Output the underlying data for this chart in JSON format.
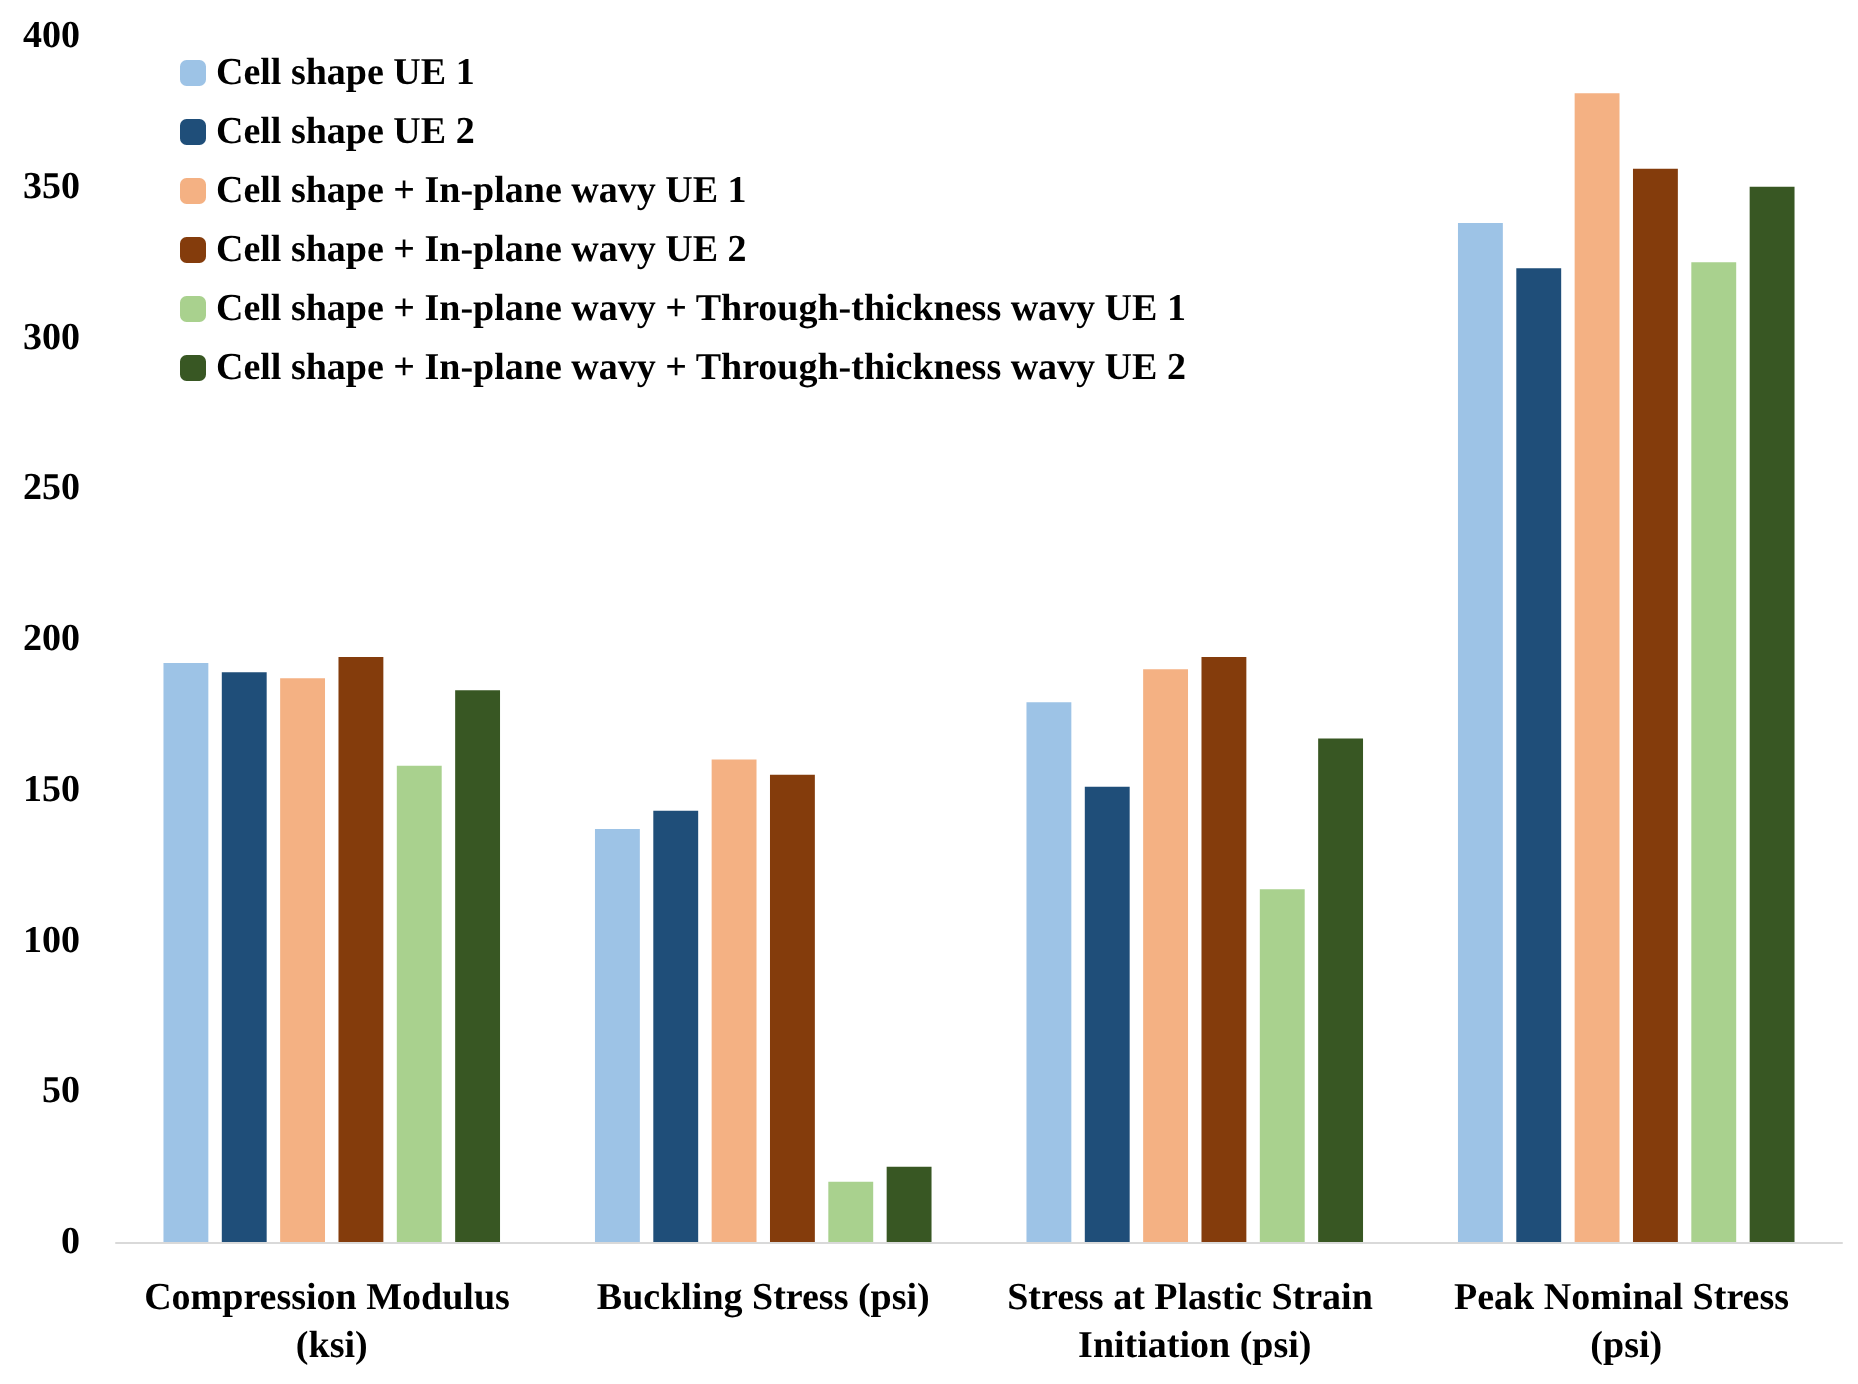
{
  "chart_data": {
    "type": "bar",
    "categories": [
      "Compression Modulus (ksi)",
      "Buckling Stress (psi)",
      "Stress at Plastic Strain Initiation (psi)",
      "Peak Nominal Stress (psi)"
    ],
    "series": [
      {
        "name": "Cell shape UE 1",
        "color": "#9dc3e6",
        "values": [
          192,
          137,
          179,
          338
        ]
      },
      {
        "name": "Cell shape UE 2",
        "color": "#1f4e79",
        "values": [
          189,
          143,
          151,
          323
        ]
      },
      {
        "name": "Cell shape + In-plane wavy UE 1",
        "color": "#f4b183",
        "values": [
          187,
          160,
          190,
          381
        ]
      },
      {
        "name": "Cell shape + In-plane wavy UE 2",
        "color": "#843c0c",
        "values": [
          194,
          155,
          194,
          356
        ]
      },
      {
        "name": "Cell shape + In-plane wavy + Through-thickness wavy UE 1",
        "color": "#a9d18e",
        "values": [
          158,
          20,
          117,
          325
        ]
      },
      {
        "name": "Cell shape + In-plane wavy + Through-thickness wavy UE 2",
        "color": "#385723",
        "values": [
          183,
          25,
          167,
          350
        ]
      }
    ],
    "ylim": [
      0,
      400
    ],
    "yticks": [
      0,
      50,
      100,
      150,
      200,
      250,
      300,
      350,
      400
    ],
    "grid": false,
    "legend": "top left"
  }
}
